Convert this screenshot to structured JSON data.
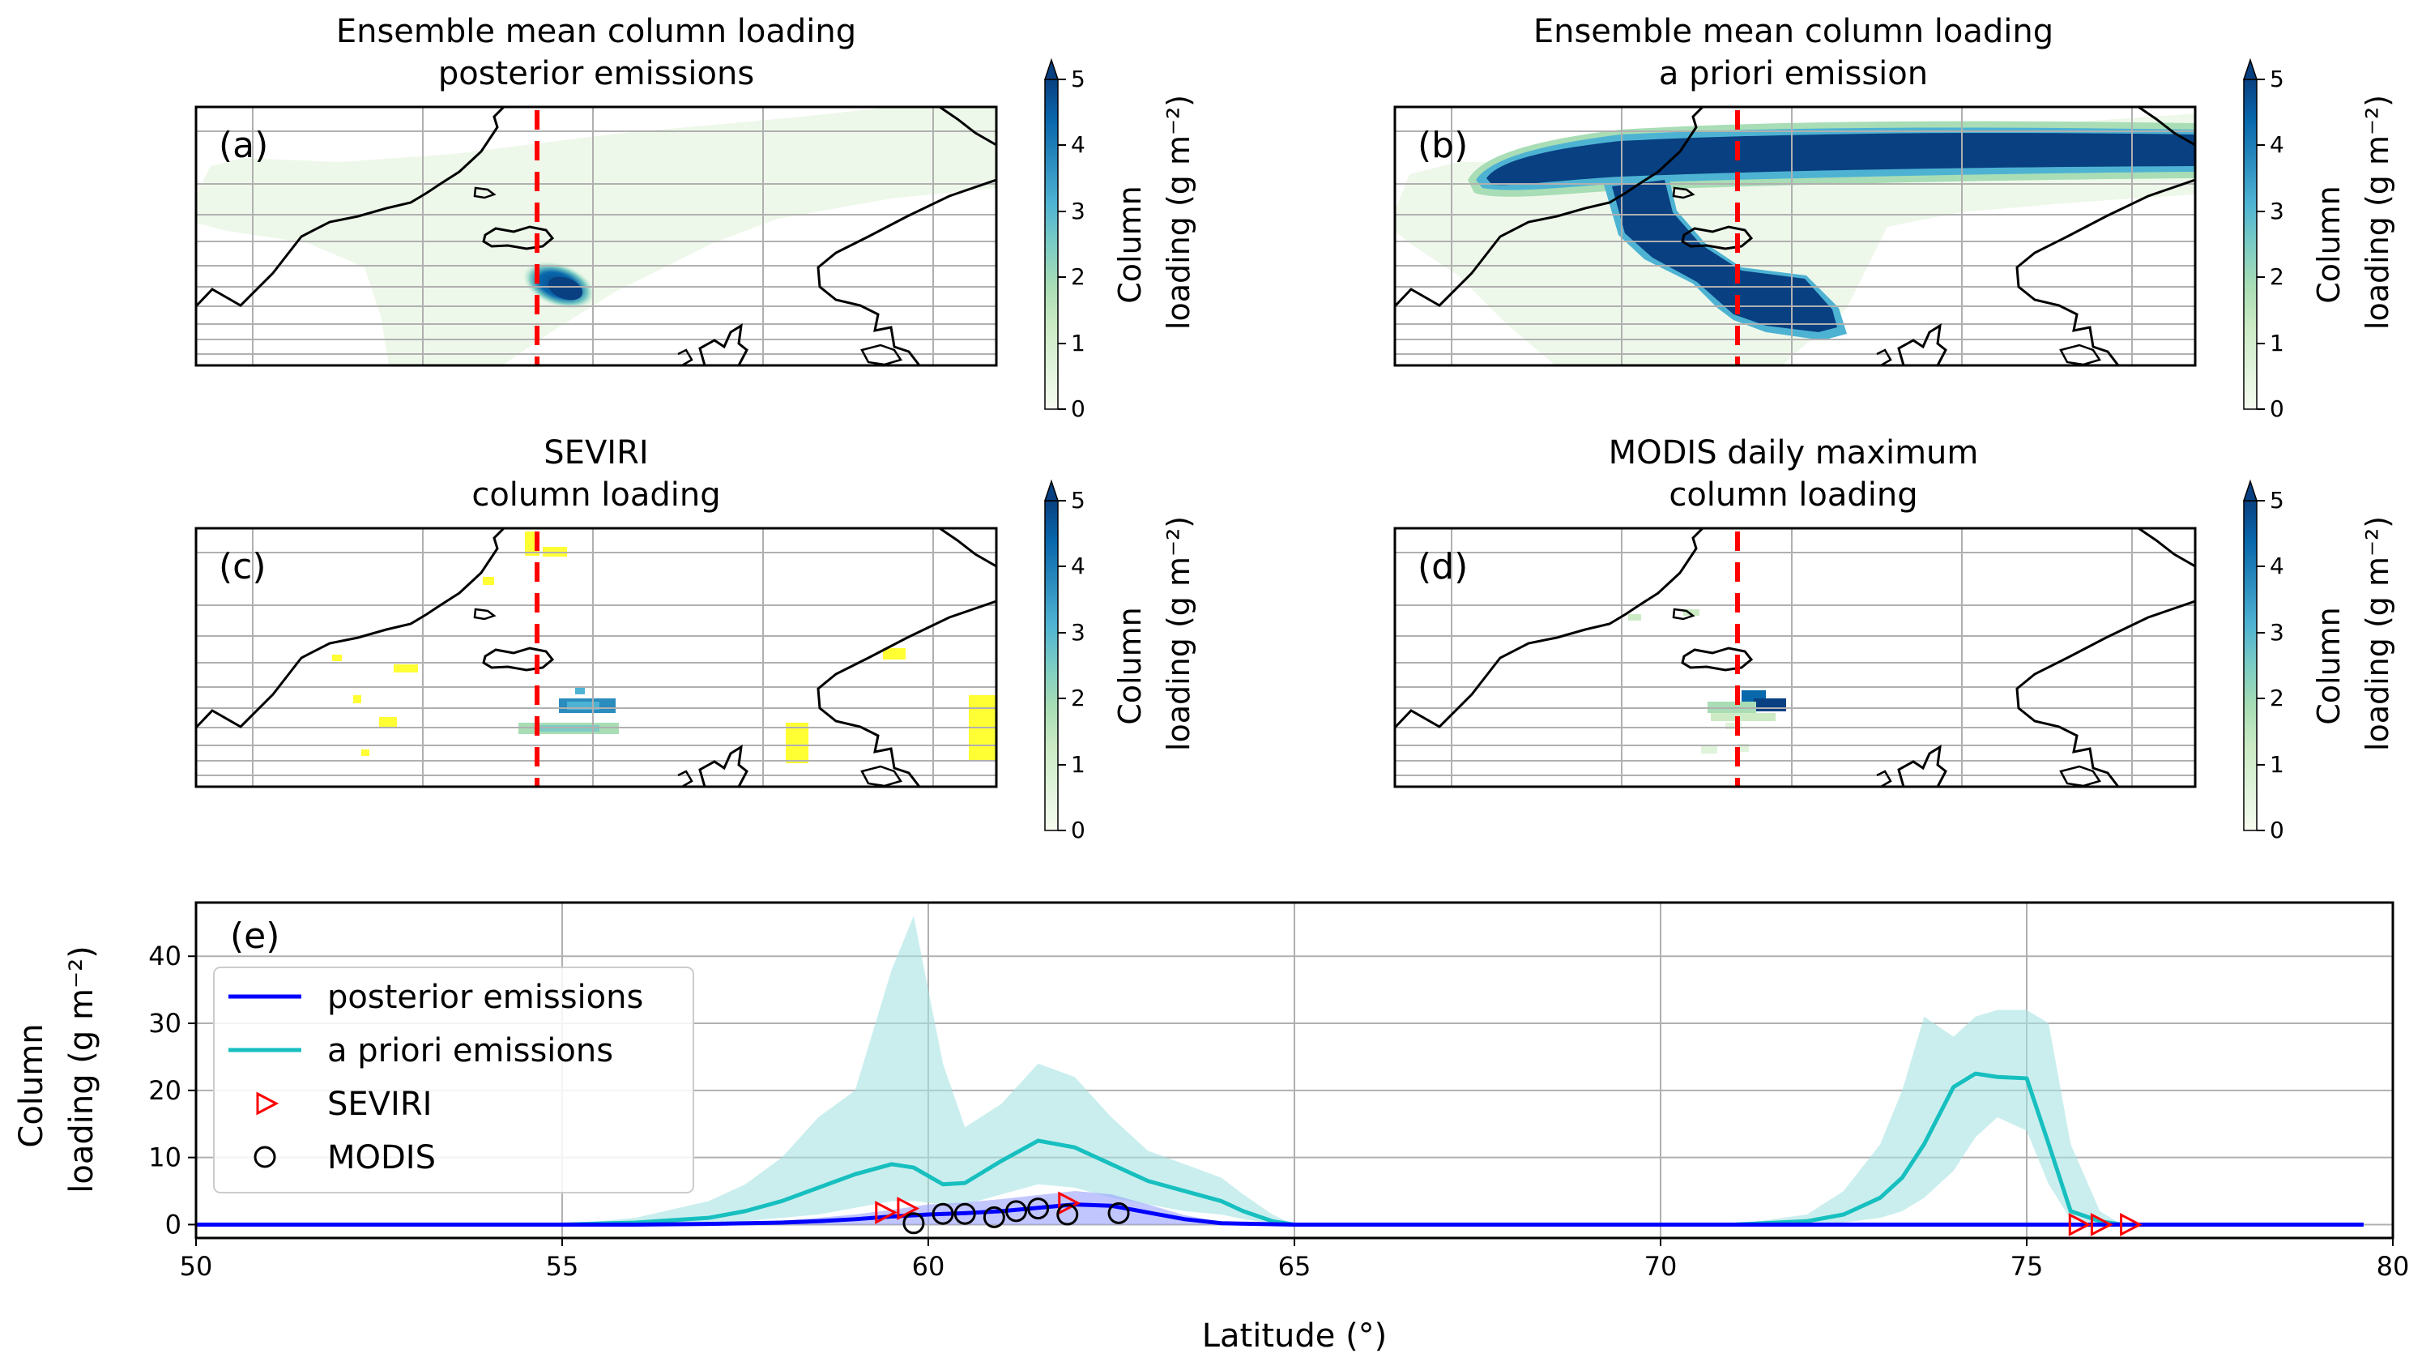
{
  "panels": [
    {
      "id": "a",
      "tag": "(a)",
      "title_line1": "Ensemble mean column loading",
      "title_line2": "posterior emissions",
      "cbar_label_line1": "Column",
      "cbar_label_line2": "loading (g m⁻²)",
      "cbar_ticks": [
        "0",
        "1",
        "2",
        "3",
        "4",
        "5"
      ]
    },
    {
      "id": "b",
      "tag": "(b)",
      "title_line1": "Ensemble mean column loading",
      "title_line2": "a priori emission",
      "cbar_label_line1": "Column",
      "cbar_label_line2": "loading (g m⁻²)",
      "cbar_ticks": [
        "0",
        "1",
        "2",
        "3",
        "4",
        "5"
      ]
    },
    {
      "id": "c",
      "tag": "(c)",
      "title_line1": "SEVIRI",
      "title_line2": "column loading",
      "cbar_label_line1": "Column",
      "cbar_label_line2": "loading (g m⁻²)",
      "cbar_ticks": [
        "0",
        "1",
        "2",
        "3",
        "4",
        "5"
      ]
    },
    {
      "id": "d",
      "tag": "(d)",
      "title_line1": "MODIS daily maximum",
      "title_line2": "column loading",
      "cbar_label_line1": "Column",
      "cbar_label_line2": "loading (g m⁻²)",
      "cbar_ticks": [
        "0",
        "1",
        "2",
        "3",
        "4",
        "5"
      ]
    }
  ],
  "colormap": {
    "name": "GnBu",
    "range": [
      0,
      5
    ],
    "extend": "max",
    "stops": [
      "#f7fcf0",
      "#e0f3db",
      "#ccebc5",
      "#a8ddb5",
      "#7bccc4",
      "#4eb3d3",
      "#2b8cbe",
      "#0868ac",
      "#084081"
    ]
  },
  "colors": {
    "posterior": "#0000ff",
    "apriori": "#17bfbf",
    "apriori_band": "#a6e3e3",
    "posterior_band": "#9aa0ff",
    "seviri": "#ff0000",
    "modis": "#000000",
    "dashed_line": "#ff0000",
    "seviri_flag": "#ffff33"
  },
  "chart_data": {
    "type": "line",
    "panel_tag": "(e)",
    "xlabel": "Latitude (°)",
    "ylabel_line1": "Column",
    "ylabel_line2": "loading (g m⁻²)",
    "xlim": [
      50,
      80
    ],
    "ylim": [
      -2,
      48
    ],
    "xticks": [
      50,
      55,
      60,
      65,
      70,
      75,
      80
    ],
    "yticks": [
      0,
      10,
      20,
      30,
      40
    ],
    "grid": true,
    "legend_position": "upper-left",
    "series": [
      {
        "name": "posterior emissions",
        "kind": "line",
        "color": "#0000ff",
        "x": [
          50,
          56,
          57,
          58,
          58.5,
          59,
          59.5,
          60,
          60.5,
          61,
          61.5,
          62,
          62.5,
          63,
          63.5,
          64,
          65,
          79.6
        ],
        "y": [
          0,
          0,
          0.1,
          0.3,
          0.5,
          0.8,
          1.2,
          1.5,
          1.7,
          2.0,
          2.5,
          3.0,
          2.8,
          1.8,
          0.8,
          0.2,
          0,
          0
        ],
        "band_upper": [
          0,
          0,
          0.2,
          0.6,
          1.0,
          1.5,
          2.2,
          3.0,
          3.3,
          3.8,
          4.4,
          5.0,
          4.5,
          3.0,
          1.4,
          0.4,
          0,
          0
        ]
      },
      {
        "name": "a priori emissions",
        "kind": "line",
        "color": "#17bfbf",
        "x": [
          50,
          55,
          56,
          57,
          57.5,
          58,
          58.5,
          59,
          59.5,
          59.8,
          60.2,
          60.5,
          61,
          61.5,
          62,
          62.5,
          63,
          63.5,
          64,
          64.3,
          64.7,
          65,
          71,
          72,
          72.5,
          73,
          73.3,
          73.6,
          74,
          74.3,
          74.6,
          75,
          75.3,
          75.6,
          76,
          76.3,
          79.6
        ],
        "y": [
          0,
          0,
          0.3,
          1.0,
          2.0,
          3.5,
          5.5,
          7.5,
          9.0,
          8.5,
          6.0,
          6.2,
          9.5,
          12.5,
          11.5,
          9.0,
          6.5,
          5.0,
          3.5,
          2.0,
          0.5,
          0,
          0,
          0.5,
          1.5,
          4.0,
          7.0,
          12.0,
          20.5,
          22.5,
          22.0,
          21.8,
          12.0,
          2.0,
          0.5,
          0,
          0
        ],
        "band_lower": [
          0,
          0,
          0.1,
          0.3,
          0.5,
          1.0,
          1.5,
          2.5,
          3.5,
          3.5,
          3.0,
          3.0,
          4.5,
          6.0,
          5.5,
          4.0,
          3.0,
          2.0,
          1.5,
          0.8,
          0.2,
          0,
          0,
          0.1,
          0.3,
          1.0,
          2.0,
          4.0,
          8.0,
          13.0,
          16.0,
          14.0,
          6.0,
          0.8,
          0.1,
          0,
          0
        ],
        "band_upper": [
          0,
          0,
          1.0,
          3.5,
          6.0,
          10.0,
          16.0,
          20.0,
          38.0,
          46.0,
          24.0,
          14.5,
          18.0,
          24.0,
          22.0,
          16.0,
          11.0,
          9.0,
          7.0,
          4.5,
          1.5,
          0,
          0,
          1.5,
          5.0,
          12.0,
          20.0,
          31.0,
          28.0,
          31.0,
          32.0,
          32.0,
          30.0,
          12.0,
          2.0,
          0,
          0
        ]
      },
      {
        "name": "SEVIRI",
        "kind": "marker",
        "marker": "triangle-right",
        "color": "#ff0000",
        "x": [
          59.4,
          59.7,
          61.9,
          75.7,
          76.0,
          76.4
        ],
        "y": [
          1.8,
          2.4,
          3.2,
          0,
          0,
          0
        ]
      },
      {
        "name": "MODIS",
        "kind": "marker",
        "marker": "circle",
        "color": "#000000",
        "x": [
          59.8,
          60.2,
          60.5,
          60.9,
          61.2,
          61.5,
          61.9,
          62.6
        ],
        "y": [
          0.2,
          1.6,
          1.6,
          1.1,
          2.0,
          2.4,
          1.5,
          1.7
        ]
      }
    ]
  }
}
